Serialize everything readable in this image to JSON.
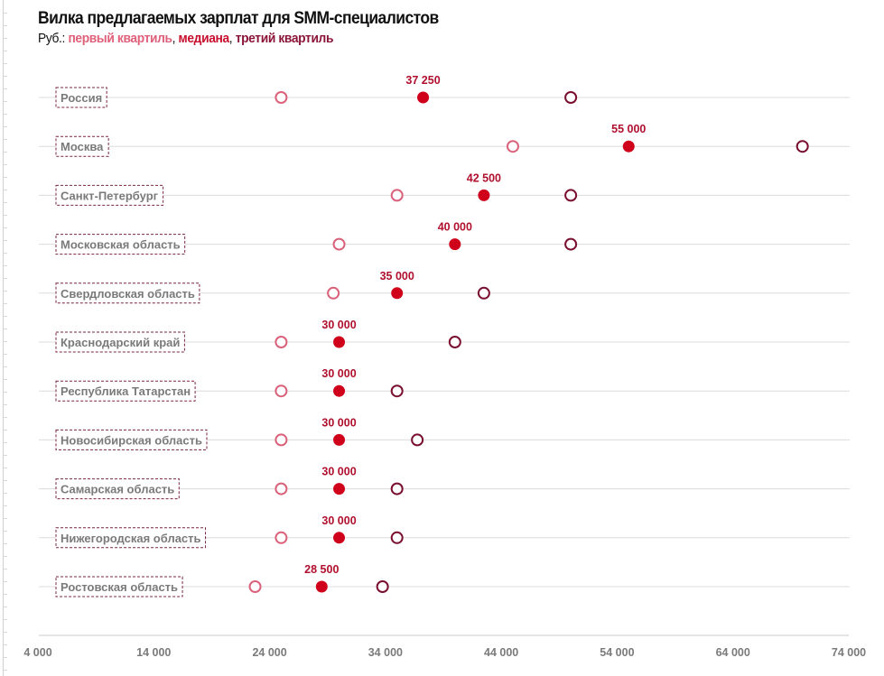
{
  "chart_data": {
    "type": "scatter",
    "subtype": "dot-range",
    "title": "Вилка предлагаемых зарплат для SMM-специалистов",
    "subtitle": {
      "prefix": "Руб.: ",
      "legend": [
        {
          "name": "первый квартиль",
          "color": "#e0607a",
          "marker": "hollow-circle"
        },
        {
          "name": "медиана",
          "color": "#c8102e",
          "marker": "filled-circle"
        },
        {
          "name": "третий квартиль",
          "color": "#8b1538",
          "marker": "hollow-circle"
        }
      ],
      "separator": ", "
    },
    "xlabel": "",
    "ylabel": "",
    "xlim": [
      4000,
      74000
    ],
    "x_ticks": [
      4000,
      14000,
      24000,
      34000,
      44000,
      54000,
      64000,
      74000
    ],
    "x_tick_labels": [
      "4 000",
      "14 000",
      "24 000",
      "34 000",
      "44 000",
      "54 000",
      "64 000",
      "74 000"
    ],
    "grid": true,
    "legend_placement": "subtitle",
    "categories": [
      "Россия",
      "Москва",
      "Санкт-Петербург",
      "Московская область",
      "Свердловская область",
      "Краснодарский край",
      "Республика Татарстан",
      "Новосибирская область",
      "Самарская область",
      "Нижегородская область",
      "Ростовская область"
    ],
    "series": [
      {
        "name": "первый квартиль",
        "values": [
          25000,
          45000,
          35000,
          30000,
          29500,
          25000,
          25000,
          25000,
          25000,
          25000,
          22750
        ]
      },
      {
        "name": "медиана",
        "values": [
          37250,
          55000,
          42500,
          40000,
          35000,
          30000,
          30000,
          30000,
          30000,
          30000,
          28500
        ]
      },
      {
        "name": "третий квартиль",
        "values": [
          50000,
          70000,
          50000,
          50000,
          42500,
          40000,
          35000,
          36750,
          35000,
          35000,
          33750
        ]
      }
    ],
    "median_labels": [
      "37 250",
      "55 000",
      "42 500",
      "40 000",
      "35 000",
      "30 000",
      "30 000",
      "30 000",
      "30 000",
      "30 000",
      "28 500"
    ]
  },
  "colors": {
    "q1": "#d9627a",
    "median": "#d0021b",
    "q3": "#7a1030",
    "label_border": "#7a2440",
    "gridline": "#dcdcdc"
  }
}
